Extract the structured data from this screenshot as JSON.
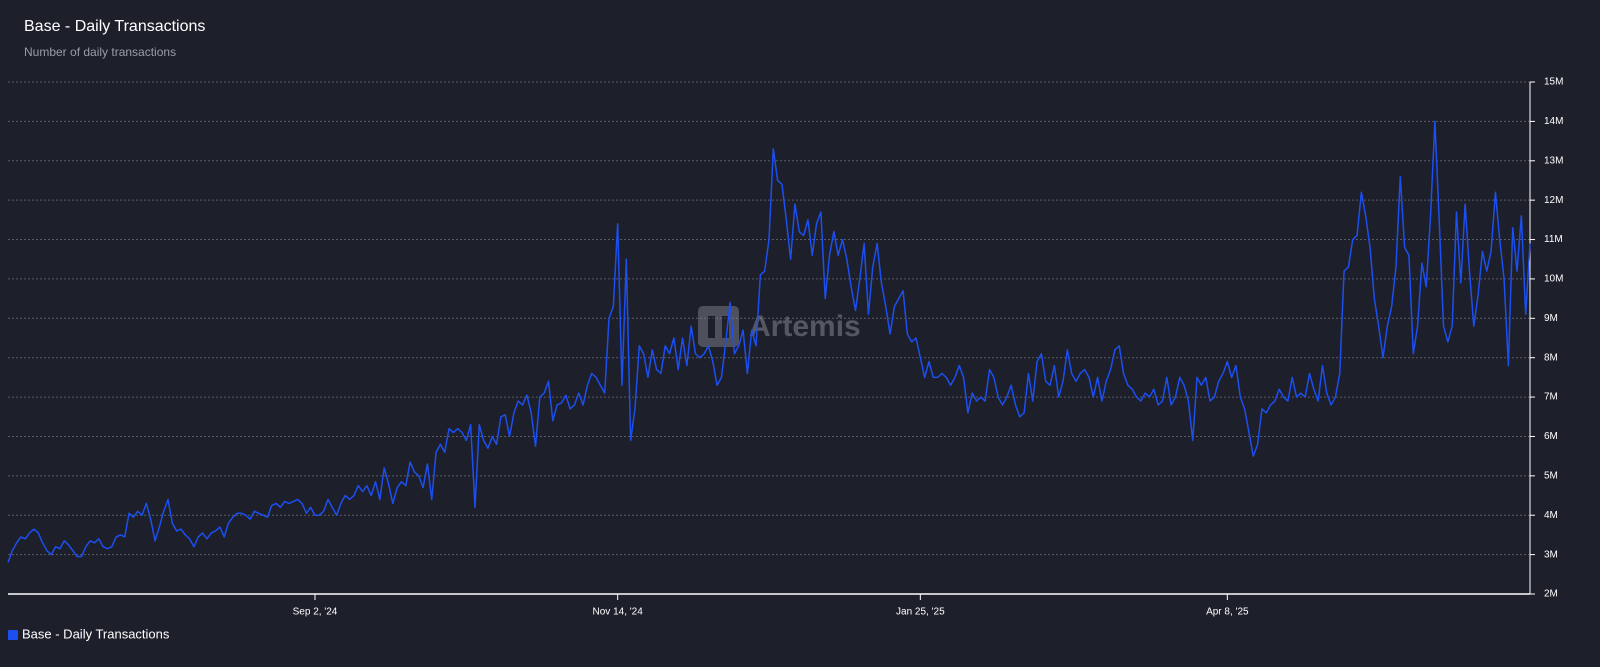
{
  "chart_data": {
    "type": "line",
    "title": "Base - Daily Transactions",
    "subtitle": "Number of daily transactions",
    "watermark": "Artemis",
    "legend": "bottom-left",
    "grid": true,
    "categories": [
      null,
      null,
      null,
      null,
      null,
      null,
      null,
      null,
      null,
      null,
      null,
      null,
      null,
      null,
      null,
      null,
      null,
      null,
      null,
      null,
      null,
      null,
      null,
      null,
      null,
      null,
      null,
      null,
      null,
      null,
      null,
      null,
      null,
      null,
      null,
      null,
      null,
      null,
      null,
      null,
      null,
      null,
      null,
      null,
      null,
      null,
      null,
      null,
      null,
      null,
      null,
      null,
      null,
      null,
      null,
      null,
      null,
      null,
      null,
      null,
      null,
      null,
      null,
      null,
      null,
      null,
      null,
      null,
      null,
      null,
      null,
      "Sep 2, '24",
      null,
      null,
      null,
      null,
      null,
      null,
      null,
      null,
      null,
      null,
      null,
      null,
      null,
      null,
      null,
      null,
      null,
      null,
      null,
      null,
      null,
      null,
      null,
      null,
      null,
      null,
      null,
      null,
      null,
      null,
      null,
      null,
      null,
      null,
      null,
      null,
      null,
      null,
      null,
      null,
      null,
      null,
      null,
      null,
      null,
      null,
      null,
      null,
      null,
      null,
      null,
      null,
      null,
      null,
      null,
      null,
      null,
      null,
      null,
      null,
      null,
      null,
      null,
      null,
      null,
      null,
      null,
      null,
      null,
      "Nov 14, '24",
      null,
      null,
      null,
      null,
      null,
      null,
      null,
      null,
      null,
      null,
      null,
      null,
      null,
      null,
      null,
      null,
      null,
      null,
      null,
      null,
      null,
      null,
      null,
      null,
      null,
      null,
      null,
      null,
      null,
      null,
      null,
      null,
      null,
      null,
      null,
      null,
      null,
      null,
      null,
      null,
      null,
      null,
      null,
      null,
      null,
      null,
      null,
      null,
      null,
      null,
      null,
      null,
      null,
      null,
      null,
      null,
      null,
      null,
      null,
      null,
      null,
      null,
      null,
      null,
      null,
      null,
      null,
      null,
      null,
      "Jan 25, '25",
      null,
      null,
      null,
      null,
      null,
      null,
      null,
      null,
      null,
      null,
      null,
      null,
      null,
      null,
      null,
      null,
      null,
      null,
      null,
      null,
      null,
      null,
      null,
      null,
      null,
      null,
      null,
      null,
      null,
      null,
      null,
      null,
      null,
      null,
      null,
      null,
      null,
      null,
      null,
      null,
      null,
      null,
      null,
      null,
      null,
      null,
      null,
      null,
      null,
      null,
      null,
      null,
      null,
      null,
      null,
      null,
      null,
      null,
      null,
      null,
      null,
      null,
      null,
      null,
      null,
      null,
      null,
      null,
      null,
      null,
      "Apr 8, '25",
      null,
      null,
      null,
      null,
      null,
      null,
      null,
      null,
      null,
      null,
      null,
      null,
      null,
      null,
      null,
      null,
      null,
      null,
      null,
      null,
      null,
      null,
      null,
      null,
      null,
      null,
      null,
      null,
      null,
      null,
      null,
      null,
      null,
      null,
      null,
      null,
      null,
      null,
      null,
      null,
      null,
      null,
      null,
      null,
      null,
      null,
      null,
      null,
      null,
      null,
      null,
      null,
      null,
      null,
      null,
      null,
      null,
      null,
      null,
      null,
      null,
      null,
      null,
      null,
      null,
      null,
      null,
      null,
      null,
      null
    ],
    "series": [
      {
        "name": "Base - Daily Transactions",
        "color": "#1c4ff0",
        "values": [
          2.8,
          3.1,
          3.3,
          3.45,
          3.4,
          3.55,
          3.65,
          3.55,
          3.3,
          3.1,
          3.0,
          3.2,
          3.15,
          3.35,
          3.25,
          3.1,
          2.95,
          2.95,
          3.2,
          3.35,
          3.3,
          3.4,
          3.2,
          3.15,
          3.2,
          3.45,
          3.5,
          3.45,
          4.05,
          3.95,
          4.1,
          4.0,
          4.3,
          3.9,
          3.35,
          3.7,
          4.1,
          4.4,
          3.8,
          3.6,
          3.65,
          3.5,
          3.4,
          3.2,
          3.45,
          3.55,
          3.4,
          3.55,
          3.6,
          3.7,
          3.45,
          3.8,
          3.95,
          4.05,
          4.05,
          4.0,
          3.9,
          4.1,
          4.05,
          4.0,
          3.95,
          4.25,
          4.3,
          4.2,
          4.35,
          4.3,
          4.35,
          4.4,
          4.3,
          4.05,
          4.2,
          4.0,
          4.0,
          4.1,
          4.4,
          4.2,
          4.0,
          4.3,
          4.5,
          4.4,
          4.5,
          4.75,
          4.6,
          4.75,
          4.5,
          4.85,
          4.4,
          5.2,
          4.8,
          4.3,
          4.7,
          4.85,
          4.75,
          5.35,
          5.1,
          5.0,
          4.7,
          5.3,
          4.4,
          5.6,
          5.8,
          5.6,
          6.2,
          6.1,
          6.2,
          6.1,
          5.9,
          6.3,
          4.2,
          6.3,
          5.9,
          5.7,
          6.0,
          5.8,
          6.5,
          6.55,
          6.0,
          6.6,
          6.9,
          6.8,
          7.05,
          6.6,
          5.75,
          7.0,
          7.1,
          7.4,
          6.4,
          6.8,
          6.85,
          7.05,
          6.7,
          6.8,
          7.1,
          6.8,
          7.3,
          7.6,
          7.5,
          7.3,
          7.1,
          9.0,
          9.3,
          11.4,
          7.3,
          10.5,
          5.9,
          6.7,
          8.3,
          8.1,
          7.5,
          8.2,
          7.7,
          7.6,
          8.3,
          8.1,
          8.5,
          7.7,
          8.5,
          7.8,
          8.8,
          8.1,
          8.0,
          8.1,
          8.3,
          7.9,
          7.3,
          7.5,
          8.4,
          9.4,
          8.1,
          8.3,
          8.7,
          7.6,
          8.7,
          8.3,
          10.1,
          10.2,
          11.0,
          13.3,
          12.5,
          12.4,
          11.5,
          10.5,
          11.9,
          11.2,
          11.1,
          11.5,
          10.6,
          11.4,
          11.7,
          9.5,
          10.6,
          11.2,
          10.6,
          11.0,
          10.5,
          9.8,
          9.2,
          10.0,
          10.9,
          9.1,
          10.3,
          10.9,
          9.9,
          9.3,
          8.6,
          9.3,
          9.5,
          9.7,
          8.6,
          8.4,
          8.5,
          8.0,
          7.5,
          7.9,
          7.5,
          7.5,
          7.6,
          7.5,
          7.3,
          7.5,
          7.8,
          7.5,
          6.6,
          7.1,
          6.9,
          7.0,
          6.9,
          7.7,
          7.5,
          7.0,
          6.8,
          7.0,
          7.3,
          6.8,
          6.5,
          6.6,
          7.6,
          6.9,
          7.9,
          8.1,
          7.4,
          7.3,
          7.8,
          7.0,
          7.4,
          8.2,
          7.6,
          7.4,
          7.6,
          7.7,
          7.5,
          7.0,
          7.5,
          6.9,
          7.4,
          7.7,
          8.2,
          8.3,
          7.6,
          7.3,
          7.2,
          7.0,
          6.9,
          7.1,
          7.0,
          7.2,
          6.8,
          6.9,
          7.5,
          6.8,
          7.0,
          7.5,
          7.3,
          6.9,
          5.9,
          7.5,
          7.3,
          7.5,
          6.9,
          7.0,
          7.4,
          7.6,
          7.9,
          7.5,
          7.8,
          7.0,
          6.7,
          6.1,
          5.5,
          5.8,
          6.7,
          6.6,
          6.8,
          6.9,
          7.2,
          7.0,
          6.9,
          7.5,
          7.0,
          7.1,
          7.0,
          7.6,
          7.2,
          6.9,
          7.8,
          7.1,
          6.8,
          7.0,
          7.6,
          10.2,
          10.3,
          11.0,
          11.1,
          12.2,
          11.6,
          10.8,
          9.5,
          8.8,
          8.0,
          8.8,
          9.3,
          10.3,
          12.6,
          10.8,
          10.6,
          8.1,
          8.8,
          10.4,
          9.8,
          11.6,
          14.0,
          11.5,
          8.8,
          8.4,
          8.8,
          11.7,
          9.9,
          11.9,
          10.2,
          8.8,
          9.6,
          10.7,
          10.2,
          10.7,
          12.2,
          11.0,
          10.0,
          7.8,
          11.3,
          10.2,
          11.6,
          9.1,
          10.9
        ]
      }
    ],
    "ylim": [
      2,
      15
    ],
    "yticks": [
      {
        "value": 2,
        "label": "2M"
      },
      {
        "value": 3,
        "label": "3M"
      },
      {
        "value": 4,
        "label": "4M"
      },
      {
        "value": 5,
        "label": "5M"
      },
      {
        "value": 6,
        "label": "6M"
      },
      {
        "value": 7,
        "label": "7M"
      },
      {
        "value": 8,
        "label": "8M"
      },
      {
        "value": 9,
        "label": "9M"
      },
      {
        "value": 10,
        "label": "10M"
      },
      {
        "value": 11,
        "label": "11M"
      },
      {
        "value": 12,
        "label": "12M"
      },
      {
        "value": 13,
        "label": "13M"
      },
      {
        "value": 14,
        "label": "14M"
      },
      {
        "value": 15,
        "label": "15M"
      }
    ]
  }
}
